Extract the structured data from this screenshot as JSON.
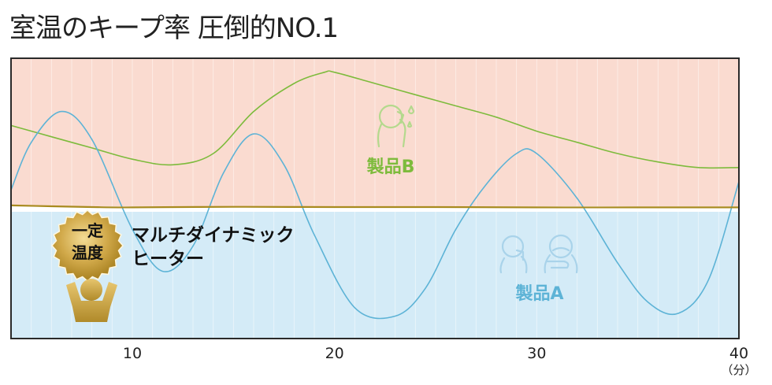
{
  "title": "室温のキープ率 圧倒的NO.1",
  "chart_data": {
    "type": "line",
    "title": "室温のキープ率 圧倒的NO.1",
    "xlabel": "",
    "ylabel": "",
    "x_unit": "（分）",
    "xlim": [
      4,
      40
    ],
    "ylim": [
      0,
      100
    ],
    "x_ticks": [
      10,
      20,
      30,
      40
    ],
    "grid": "vertical",
    "bands": [
      {
        "region": "upper",
        "color": "#fadbd0"
      },
      {
        "region": "lower",
        "color": "#d4ebf7"
      }
    ],
    "series": [
      {
        "name": "製品B",
        "color": "#7dbb3c",
        "x": [
          4,
          6,
          8,
          10,
          12,
          14,
          16,
          18,
          19.5,
          20,
          22,
          24,
          26,
          28,
          30,
          32,
          34,
          36,
          38,
          40
        ],
        "values": [
          76,
          72,
          68,
          64,
          62,
          66,
          81,
          91,
          95,
          95,
          91,
          87,
          83,
          79,
          74,
          70,
          66,
          63,
          61,
          61
        ]
      },
      {
        "name": "製品A",
        "color": "#5db3d6",
        "x": [
          4,
          5,
          6.5,
          8,
          10,
          11.5,
          13,
          14.5,
          16,
          17.5,
          19,
          21,
          23,
          24.5,
          26,
          27.5,
          29,
          30,
          32,
          34,
          35.5,
          37,
          38.5,
          40
        ],
        "values": [
          53,
          70,
          81,
          71,
          39,
          24,
          33,
          59,
          73,
          62,
          37,
          11,
          8,
          18,
          39,
          55,
          66,
          66,
          50,
          27,
          13,
          9,
          21,
          56
        ]
      },
      {
        "name": "マルチダイナミックヒーター",
        "color": "#a88a1e",
        "x": [
          4,
          6,
          8,
          10,
          15,
          20,
          25,
          30,
          35,
          40
        ],
        "values": [
          47.5,
          47.2,
          46.9,
          46.8,
          47.0,
          46.9,
          46.9,
          46.8,
          46.8,
          46.8
        ]
      }
    ],
    "annotations": [
      {
        "text": "製品B",
        "color": "#7dbb3c"
      },
      {
        "text": "製品A",
        "color": "#5db3d6"
      },
      {
        "text": "マルチダイナミック",
        "color": "#111111"
      },
      {
        "text": "ヒーター",
        "color": "#111111"
      },
      {
        "text": "一定",
        "color": "#111111"
      },
      {
        "text": "温度",
        "color": "#111111"
      }
    ]
  }
}
